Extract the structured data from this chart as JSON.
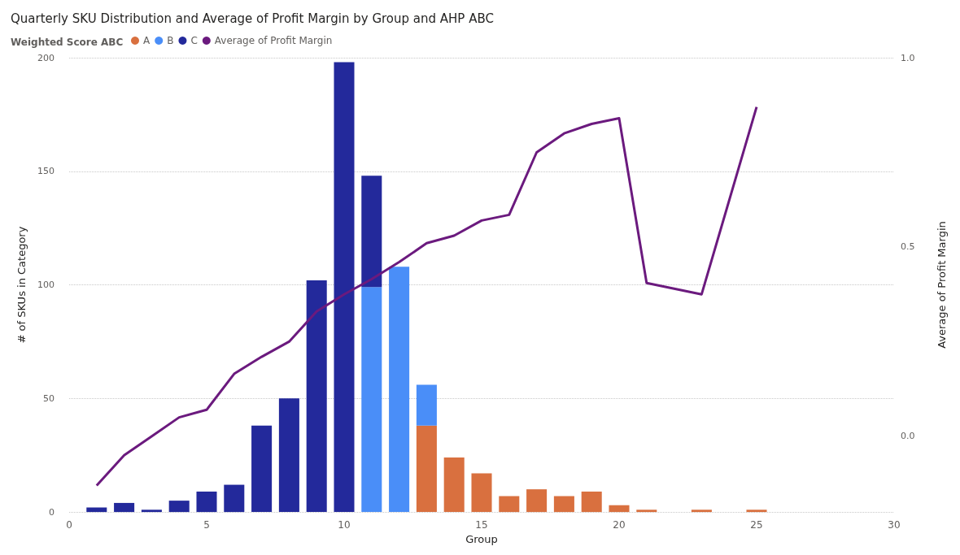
{
  "chart_data": {
    "type": "bar",
    "title": "Quarterly SKU Distribution and Average of Profit Margin by Group and AHP ABC",
    "legend_title": "Weighted Score ABC",
    "xlabel": "Group",
    "ylabel": "# of SKUs in Category",
    "y2label": "Average of Profit Margin",
    "x": [
      1,
      2,
      3,
      4,
      5,
      6,
      7,
      8,
      9,
      10,
      11,
      12,
      13,
      14,
      15,
      16,
      17,
      18,
      19,
      20,
      21,
      22,
      23,
      24,
      25
    ],
    "stacked": true,
    "series": [
      {
        "name": "A",
        "color": "#d9703f",
        "values": [
          null,
          null,
          null,
          null,
          null,
          null,
          null,
          null,
          null,
          null,
          null,
          null,
          38,
          24,
          17,
          7,
          10,
          7,
          9,
          3,
          1,
          null,
          1,
          null,
          1
        ]
      },
      {
        "name": "B",
        "color": "#4a8ef8",
        "values": [
          null,
          null,
          null,
          null,
          null,
          null,
          null,
          null,
          null,
          null,
          99,
          108,
          18,
          null,
          null,
          null,
          null,
          null,
          null,
          null,
          null,
          null,
          null,
          null,
          null
        ]
      },
      {
        "name": "C",
        "color": "#23299b",
        "values": [
          2,
          4,
          1,
          5,
          9,
          12,
          38,
          50,
          102,
          198,
          49,
          null,
          null,
          null,
          null,
          null,
          null,
          null,
          null,
          null,
          null,
          null,
          null,
          null,
          null
        ]
      },
      {
        "name": "Average of Profit Margin",
        "type": "line",
        "axis": "y2",
        "color": "#6b1a7e",
        "x": [
          1,
          2,
          3,
          4,
          5,
          6,
          7,
          8,
          9,
          10,
          11,
          12,
          13,
          14,
          15,
          16,
          17,
          18,
          19,
          20,
          21,
          23,
          25
        ],
        "values": [
          -0.13,
          -0.05,
          0.0,
          0.05,
          0.07,
          0.165,
          0.21,
          0.25,
          0.33,
          0.375,
          0.415,
          0.46,
          0.51,
          0.53,
          0.57,
          0.585,
          0.75,
          0.8,
          0.825,
          0.84,
          0.405,
          0.375,
          0.87
        ]
      }
    ],
    "xlim": [
      0,
      30
    ],
    "xticks": [
      0,
      5,
      10,
      15,
      20,
      25,
      30
    ],
    "ylim": [
      0,
      200
    ],
    "yticks": [
      0,
      50,
      100,
      150,
      200
    ],
    "y2lim": [
      -0.2,
      1.0
    ],
    "y2ticks": [
      {
        "value": 0,
        "label": "0.0"
      },
      {
        "value": 0.5,
        "label": "0.5"
      },
      {
        "value": 1.0,
        "label": "1.0"
      }
    ],
    "grid": "y",
    "legend": "top left",
    "marker": "none",
    "line_style": "solid"
  }
}
